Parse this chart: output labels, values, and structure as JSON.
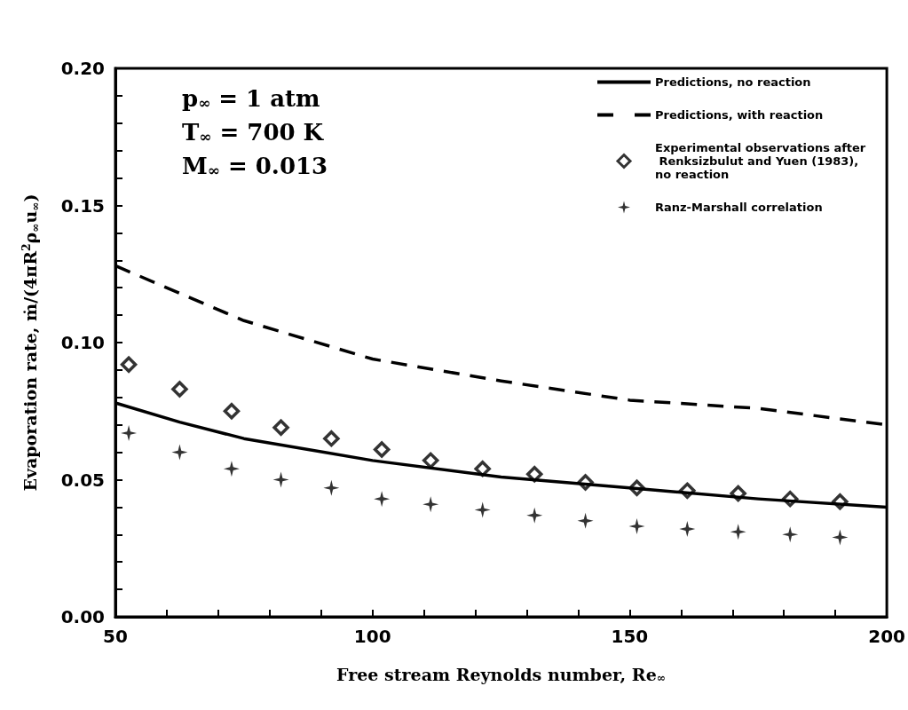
{
  "chart_data": {
    "type": "line",
    "xlabel": "Free stream Reynolds number, Re$_{∞}$",
    "ylabel": "Evaporation rate, ṁ/(4πR$^{2}$ρ$_{∞}$u$_{∞}$)",
    "annotations": [
      "p$_{∞}$ = 1 atm",
      "T$_{∞}$ = 700 K",
      "M$_{∞}$ = 0.013"
    ],
    "xlim": [
      50,
      200
    ],
    "xticks": [
      50,
      {
        "value": 60,
        "label": null
      },
      {
        "value": 70,
        "label": null
      },
      {
        "value": 80,
        "label": null
      },
      {
        "value": 90,
        "label": null
      },
      100,
      {
        "value": 110,
        "label": null
      },
      {
        "value": 120,
        "label": null
      },
      {
        "value": 130,
        "label": null
      },
      {
        "value": 140,
        "label": null
      },
      150,
      {
        "value": 160,
        "label": null
      },
      {
        "value": 170,
        "label": null
      },
      {
        "value": 180,
        "label": null
      },
      {
        "value": 190,
        "label": null
      },
      200
    ],
    "ylim": [
      0,
      0.2
    ],
    "yticks": [
      {
        "value": 0,
        "label": "0.00"
      },
      {
        "value": 0.01,
        "label": null
      },
      {
        "value": 0.02,
        "label": null
      },
      {
        "value": 0.03,
        "label": null
      },
      {
        "value": 0.04,
        "label": null
      },
      {
        "value": 0.05,
        "label": "0.05"
      },
      {
        "value": 0.06,
        "label": null
      },
      {
        "value": 0.07,
        "label": null
      },
      {
        "value": 0.08,
        "label": null
      },
      {
        "value": 0.09,
        "label": null
      },
      {
        "value": 0.1,
        "label": "0.10"
      },
      {
        "value": 0.11,
        "label": null
      },
      {
        "value": 0.12,
        "label": null
      },
      {
        "value": 0.13,
        "label": null
      },
      {
        "value": 0.14,
        "label": null
      },
      {
        "value": 0.15,
        "label": "0.15"
      },
      {
        "value": 0.16,
        "label": null
      },
      {
        "value": 0.17,
        "label": null
      },
      {
        "value": 0.18,
        "label": null
      },
      {
        "value": 0.19,
        "label": null
      },
      {
        "value": 0.2,
        "label": "0.20"
      }
    ],
    "grid": false,
    "legend": "top right",
    "series": [
      {
        "name": "Predictions, no reaction",
        "color": "#000000",
        "marker": "none",
        "line_style": "solid",
        "x": [
          50,
          62.5,
          75,
          100,
          125,
          150,
          175,
          200
        ],
        "values": [
          0.078,
          0.071,
          0.065,
          0.057,
          0.051,
          0.047,
          0.043,
          0.04
        ]
      },
      {
        "name": "Predictions, with reaction",
        "color": "#000000",
        "marker": "none",
        "line_style": "dashed",
        "x": [
          50,
          62.5,
          75,
          100,
          125,
          150,
          175,
          200
        ],
        "values": [
          0.128,
          0.118,
          0.108,
          0.094,
          0.086,
          0.079,
          0.076,
          0.07
        ]
      },
      {
        "name": "Experimental observations after Renksizbulut and Yuen (1983), no reaction",
        "type": "scatter",
        "color": "#000000",
        "marker": "diamond",
        "x": [
          52.6,
          62.5,
          72.6,
          82.2,
          92,
          101.8,
          111.3,
          121.4,
          131.5,
          141.4,
          151.4,
          161.2,
          171.1,
          181.2,
          190.9
        ],
        "values": [
          0.092,
          0.083,
          0.075,
          0.069,
          0.065,
          0.061,
          0.057,
          0.054,
          0.052,
          0.049,
          0.047,
          0.046,
          0.045,
          0.043,
          0.042
        ]
      },
      {
        "name": "Ranz-Marshall correlation",
        "type": "scatter",
        "color": "#000000",
        "marker": "cross",
        "x": [
          52.6,
          62.5,
          72.6,
          82.2,
          92,
          101.8,
          111.3,
          121.4,
          131.5,
          141.4,
          151.4,
          161.2,
          171.1,
          181.2,
          190.9
        ],
        "values": [
          0.067,
          0.06,
          0.054,
          0.05,
          0.047,
          0.043,
          0.041,
          0.039,
          0.037,
          0.035,
          0.033,
          0.032,
          0.031,
          0.03,
          0.029
        ]
      }
    ]
  }
}
